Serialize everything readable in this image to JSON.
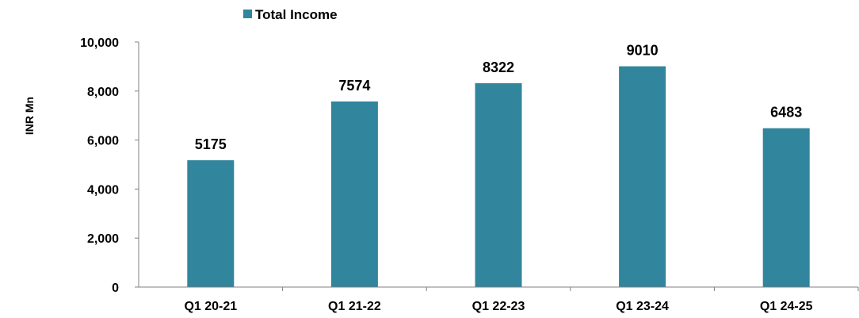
{
  "chart_data": {
    "type": "bar",
    "title": "",
    "xlabel": "",
    "ylabel": "INR Mn",
    "ylim": [
      0,
      10000
    ],
    "yticks": [
      0,
      2000,
      4000,
      6000,
      8000,
      10000
    ],
    "ytick_labels": [
      "0",
      "2,000",
      "4,000",
      "6,000",
      "8,000",
      "10,000"
    ],
    "categories": [
      "Q1 20-21",
      "Q1 21-22",
      "Q1 22-23",
      "Q1 23-24",
      "Q1 24-25"
    ],
    "series": [
      {
        "name": "Total Income",
        "values": [
          5175,
          7574,
          8322,
          9010,
          6483
        ],
        "data_labels": [
          "5175",
          "7574",
          "8322",
          "9010",
          "6483"
        ]
      }
    ],
    "legend_position": "top",
    "grid": false,
    "bar_color": "#31859C"
  }
}
